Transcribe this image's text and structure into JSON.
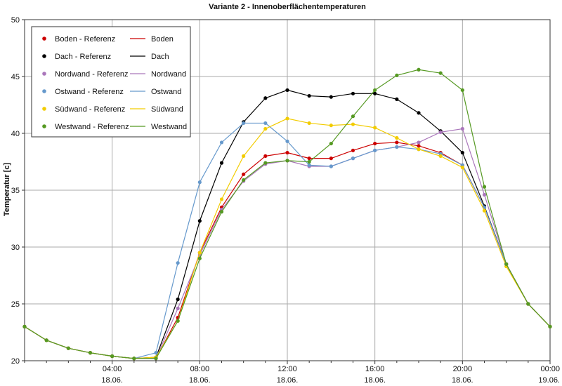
{
  "chart_data": {
    "type": "line",
    "title": "Variante 2 - Innenoberflächentemperaturen",
    "xlabel": "",
    "ylabel": "Temperatur [c]",
    "xlim": [
      0,
      24
    ],
    "ylim": [
      20,
      50
    ],
    "grid": true,
    "legend_position": "top-left",
    "y_ticks": [
      20,
      25,
      30,
      35,
      40,
      45,
      50
    ],
    "x_ticks": [
      {
        "x": 4,
        "time": "04:00",
        "date": "18.06."
      },
      {
        "x": 8,
        "time": "08:00",
        "date": "18.06."
      },
      {
        "x": 12,
        "time": "12:00",
        "date": "18.06."
      },
      {
        "x": 16,
        "time": "16:00",
        "date": "18.06."
      },
      {
        "x": 20,
        "time": "20:00",
        "date": "18.06."
      },
      {
        "x": 24,
        "time": "00:00",
        "date": "19.06."
      }
    ],
    "x": [
      0,
      1,
      2,
      3,
      4,
      5,
      6,
      7,
      8,
      9,
      10,
      11,
      12,
      13,
      14,
      15,
      16,
      17,
      18,
      19,
      20,
      21,
      22,
      23,
      24
    ],
    "series": [
      {
        "name": "Boden",
        "ref_name": "Boden - Referenz",
        "color": "#cc0000",
        "values": [
          23,
          21.8,
          21.1,
          20.7,
          20.4,
          20.2,
          20.2,
          23.8,
          29.5,
          33.5,
          36.4,
          38.0,
          38.3,
          37.8,
          37.8,
          38.5,
          39.1,
          39.2,
          38.9,
          38.3,
          37.2,
          33.5,
          28.5,
          25.0,
          23.0
        ]
      },
      {
        "name": "Dach",
        "ref_name": "Dach - Referenz",
        "color": "#000000",
        "values": [
          23,
          21.8,
          21.1,
          20.7,
          20.4,
          20.2,
          20.3,
          25.4,
          32.3,
          37.4,
          41.0,
          43.1,
          43.8,
          43.3,
          43.2,
          43.5,
          43.5,
          43.0,
          41.8,
          40.2,
          38.3,
          33.6,
          28.5,
          25.0,
          23.0
        ]
      },
      {
        "name": "Nordwand",
        "ref_name": "Nordwand - Referenz",
        "color": "#aa77bb",
        "values": [
          23,
          21.8,
          21.1,
          20.7,
          20.4,
          20.2,
          20.2,
          24.6,
          29.3,
          33.3,
          35.8,
          37.3,
          37.6,
          37.1,
          37.1,
          37.8,
          38.5,
          38.8,
          39.2,
          40.1,
          40.4,
          34.6,
          28.5,
          25.0,
          23.0
        ]
      },
      {
        "name": "Ostwand",
        "ref_name": "Ostwand - Referenz",
        "color": "#6699cc",
        "values": [
          23,
          21.8,
          21.1,
          20.7,
          20.4,
          20.2,
          20.7,
          28.6,
          35.7,
          39.2,
          40.9,
          40.9,
          39.3,
          37.2,
          37.1,
          37.8,
          38.5,
          38.8,
          38.6,
          38.2,
          37.2,
          33.5,
          28.5,
          25.0,
          23.0
        ]
      },
      {
        "name": "Südwand",
        "ref_name": "Südwand - Referenz",
        "color": "#f2cc00",
        "values": [
          23,
          21.8,
          21.1,
          20.7,
          20.4,
          20.2,
          20.3,
          23.5,
          29.5,
          34.2,
          38.0,
          40.4,
          41.3,
          40.9,
          40.7,
          40.8,
          40.5,
          39.6,
          38.6,
          38.0,
          37.0,
          33.2,
          28.3,
          25.0,
          23.0
        ]
      },
      {
        "name": "Westwand",
        "ref_name": "Westwand - Referenz",
        "color": "#559922",
        "values": [
          23,
          21.8,
          21.1,
          20.7,
          20.4,
          20.2,
          20.2,
          23.5,
          29.0,
          33.1,
          35.9,
          37.4,
          37.6,
          37.5,
          39.1,
          41.5,
          43.8,
          45.1,
          45.6,
          45.3,
          43.8,
          35.3,
          28.5,
          25.0,
          23.0
        ]
      }
    ]
  }
}
